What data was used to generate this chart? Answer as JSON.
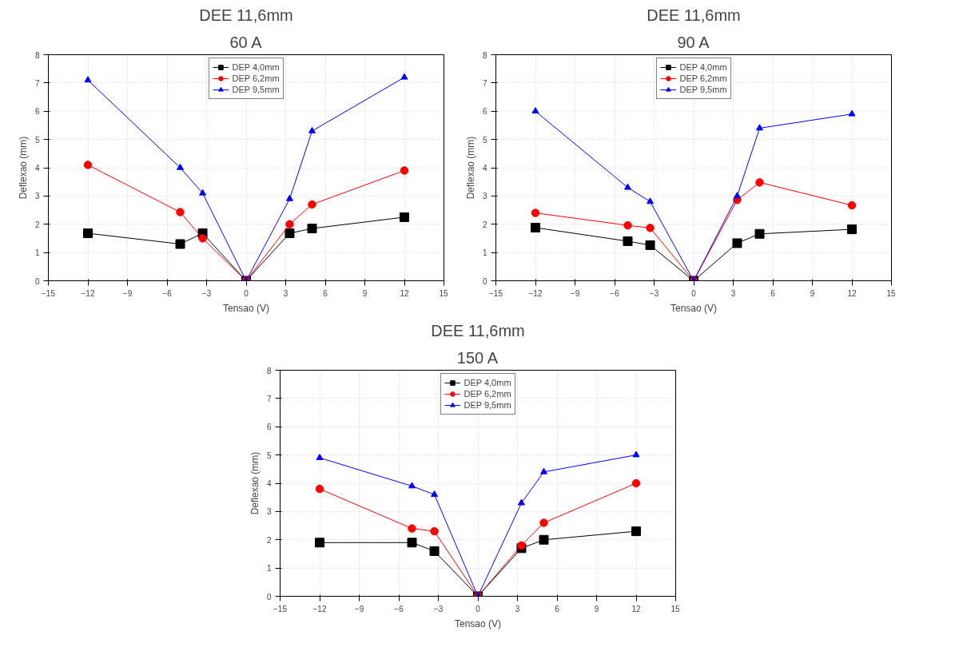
{
  "chart_data": [
    {
      "type": "line",
      "title": "DEE 11,6mm",
      "subtitle": "60 A",
      "xlabel": "Tensao (V)",
      "ylabel": "Deflexao (mm)",
      "x": [
        -12,
        -5,
        -3.3,
        0,
        3.3,
        5,
        12
      ],
      "xlim": [
        -15,
        15
      ],
      "xticks": [
        -15,
        -12,
        -9,
        -6,
        -3,
        0,
        3,
        6,
        9,
        12,
        15
      ],
      "ylim": [
        0,
        8
      ],
      "yticks": [
        0,
        1,
        2,
        3,
        4,
        5,
        6,
        7,
        8
      ],
      "grid": true,
      "legend": "top",
      "line_style": "solid",
      "series": [
        {
          "name": "DEP 4,0mm",
          "color": "#000000",
          "marker": "square",
          "values": [
            1.68,
            1.3,
            1.68,
            0,
            1.68,
            1.85,
            2.25
          ]
        },
        {
          "name": "DEP 6,2mm",
          "color": "#ff0000",
          "marker": "circle",
          "values": [
            4.1,
            2.43,
            1.5,
            0,
            2.0,
            2.7,
            3.9
          ]
        },
        {
          "name": "DEP 9,5mm",
          "color": "#0000ff",
          "marker": "triangle",
          "values": [
            7.1,
            4.0,
            3.1,
            0,
            2.9,
            5.3,
            7.2
          ]
        }
      ]
    },
    {
      "type": "line",
      "title": "DEE 11,6mm",
      "subtitle": "90 A",
      "xlabel": "Tensao (V)",
      "ylabel": "Deflexao (mm)",
      "x": [
        -12,
        -5,
        -3.3,
        0,
        3.3,
        5,
        12
      ],
      "xlim": [
        -15,
        15
      ],
      "xticks": [
        -15,
        -12,
        -9,
        -6,
        -3,
        0,
        3,
        6,
        9,
        12,
        15
      ],
      "ylim": [
        0,
        8
      ],
      "yticks": [
        0,
        1,
        2,
        3,
        4,
        5,
        6,
        7,
        8
      ],
      "grid": true,
      "legend": "top",
      "line_style": "solid",
      "series": [
        {
          "name": "DEP 4,0mm",
          "color": "#000000",
          "marker": "square",
          "values": [
            1.88,
            1.4,
            1.26,
            0,
            1.33,
            1.66,
            1.82
          ]
        },
        {
          "name": "DEP 6,2mm",
          "color": "#ff0000",
          "marker": "circle",
          "values": [
            2.4,
            1.96,
            1.87,
            0,
            2.86,
            3.48,
            2.67
          ]
        },
        {
          "name": "DEP 9,5mm",
          "color": "#0000ff",
          "marker": "triangle",
          "values": [
            6.0,
            3.3,
            2.8,
            0,
            3.0,
            5.4,
            5.9
          ]
        }
      ]
    },
    {
      "type": "line",
      "title": "DEE 11,6mm",
      "subtitle": "150 A",
      "xlabel": "Tensao (V)",
      "ylabel": "Deflexao (mm)",
      "x": [
        -12,
        -5,
        -3.3,
        0,
        3.3,
        5,
        12
      ],
      "xlim": [
        -15,
        15
      ],
      "xticks": [
        -15,
        -12,
        -9,
        -6,
        -3,
        0,
        3,
        6,
        9,
        12,
        15
      ],
      "ylim": [
        0,
        8
      ],
      "yticks": [
        0,
        1,
        2,
        3,
        4,
        5,
        6,
        7,
        8
      ],
      "grid": true,
      "legend": "top",
      "line_style": "solid",
      "series": [
        {
          "name": "DEP 4,0mm",
          "color": "#000000",
          "marker": "square",
          "values": [
            1.9,
            1.9,
            1.6,
            0,
            1.7,
            2.0,
            2.3
          ]
        },
        {
          "name": "DEP 6,2mm",
          "color": "#ff0000",
          "marker": "circle",
          "values": [
            3.8,
            2.4,
            2.3,
            0,
            1.8,
            2.6,
            4.0
          ]
        },
        {
          "name": "DEP 9,5mm",
          "color": "#0000ff",
          "marker": "triangle",
          "values": [
            4.9,
            3.9,
            3.6,
            0,
            3.3,
            4.4,
            5.0
          ]
        }
      ]
    }
  ]
}
